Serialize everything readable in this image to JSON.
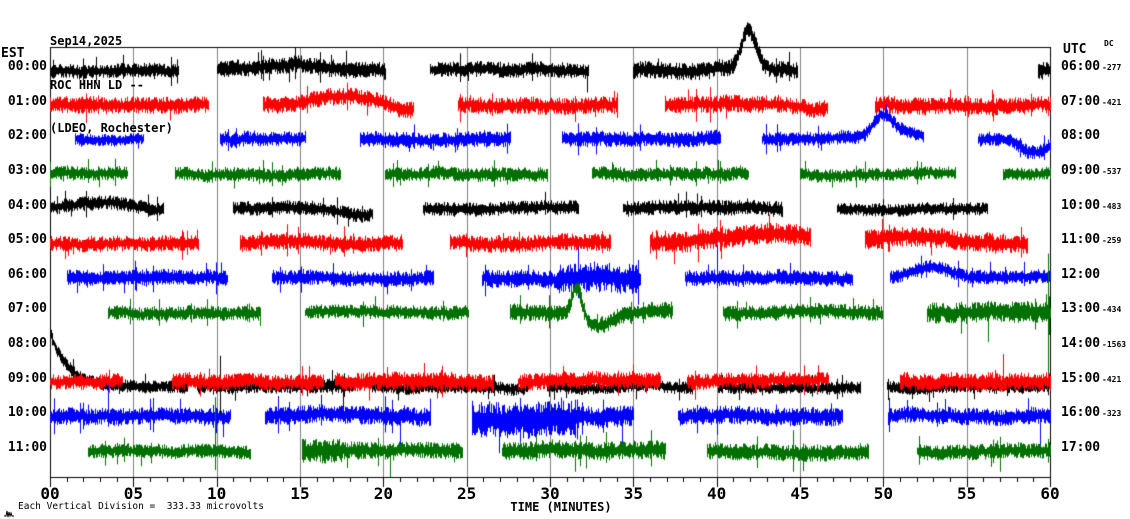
{
  "header": {
    "date": "Sep14,2025",
    "station": "ROC HHN LD --",
    "location": "(LDEO, Rochester)"
  },
  "footer": {
    "scale_text": "Each Vertical Division =  333.33 microvolts",
    "mark_icon": "waveform-mark"
  },
  "colors": {
    "trace_cycle": [
      "#000000",
      "#ff0000",
      "#0000ff",
      "#007000"
    ],
    "grid": "#808080",
    "frame": "#000000",
    "background": "#ffffff"
  },
  "chart_data": {
    "type": "line",
    "subtype": "seismogram-helicorder",
    "title": "ROC HHN LD -- (LDEO, Rochester) Sep14,2025",
    "x": {
      "label": "TIME (MINUTES)",
      "min": 0,
      "max": 60,
      "major": 5,
      "minor": 1,
      "tick_labels": [
        "00",
        "05",
        "10",
        "15",
        "20",
        "25",
        "30",
        "35",
        "40",
        "45",
        "50",
        "55",
        "60"
      ]
    },
    "left_axis_label": "EST",
    "right_axis_label": "UTC",
    "dc_column_label": "DC",
    "grid": true,
    "rows": [
      {
        "est": "00:00",
        "utc": "06:00",
        "dc": "-277",
        "color_index": 0,
        "offset": 0,
        "segments": [
          [
            0,
            7.7,
            0.2
          ],
          [
            10,
            20.1,
            0.24
          ],
          [
            22.8,
            32.3,
            0.22
          ],
          [
            35,
            44.8,
            0.24
          ],
          [
            59.3,
            60,
            0.25
          ]
        ],
        "events": [
          {
            "kind": "hump",
            "t": 14.5,
            "amp": 0.18,
            "w": 1.8
          },
          {
            "kind": "hump",
            "t": 41.9,
            "amp": 1.15,
            "w": 0.45
          },
          {
            "kind": "spike",
            "t": 32.2,
            "up": 0.1,
            "down": 0.65
          }
        ]
      },
      {
        "est": "01:00",
        "utc": "07:00",
        "dc": "-421",
        "color_index": 1,
        "offset": 0,
        "segments": [
          [
            0,
            9.5,
            0.24
          ],
          [
            12.8,
            21.8,
            0.24
          ],
          [
            24.5,
            34,
            0.24
          ],
          [
            36.9,
            46.6,
            0.24
          ],
          [
            49.5,
            60,
            0.24
          ]
        ],
        "events": [
          {
            "kind": "hump",
            "t": 17.8,
            "amp": 0.22,
            "w": 1.6
          },
          {
            "kind": "hump",
            "t": 21.2,
            "amp": -0.22,
            "w": 0.7
          },
          {
            "kind": "hump",
            "t": 46,
            "amp": -0.15,
            "w": 0.8
          }
        ]
      },
      {
        "est": "02:00",
        "utc": "08:00",
        "dc": "",
        "color_index": 2,
        "offset": 0,
        "segments": [
          [
            1.5,
            5.6,
            0.17
          ],
          [
            10.2,
            15.3,
            0.22
          ],
          [
            18.6,
            27.6,
            0.22
          ],
          [
            30.7,
            40.2,
            0.22
          ],
          [
            42.7,
            52.4,
            0.2
          ],
          [
            55.7,
            60,
            0.2
          ]
        ],
        "events": [
          {
            "kind": "hump",
            "t": 49.9,
            "amp": 0.55,
            "w": 0.55
          },
          {
            "kind": "hump",
            "t": 50.9,
            "amp": 0.2,
            "w": 1.2
          },
          {
            "kind": "hump",
            "t": 59,
            "amp": -0.4,
            "w": 0.8
          }
        ]
      },
      {
        "est": "03:00",
        "utc": "09:00",
        "dc": "-537",
        "color_index": 3,
        "offset": 0,
        "segments": [
          [
            0,
            4.6,
            0.2
          ],
          [
            7.5,
            17.4,
            0.2
          ],
          [
            20.1,
            29.8,
            0.2
          ],
          [
            32.5,
            41.9,
            0.2
          ],
          [
            45,
            54.3,
            0.18
          ],
          [
            57.2,
            60,
            0.18
          ]
        ],
        "events": []
      },
      {
        "est": "04:00",
        "utc": "10:00",
        "dc": "-483",
        "color_index": 0,
        "offset": 0,
        "segments": [
          [
            0,
            6.8,
            0.2
          ],
          [
            11,
            19.3,
            0.2
          ],
          [
            22.4,
            31.7,
            0.2
          ],
          [
            34.4,
            43.9,
            0.22
          ],
          [
            47.2,
            56.2,
            0.18
          ]
        ],
        "events": [
          {
            "kind": "hump",
            "t": 3.2,
            "amp": 0.25,
            "w": 1.5
          },
          {
            "kind": "hump",
            "t": 18.6,
            "amp": -0.2,
            "w": 1.0
          }
        ]
      },
      {
        "est": "05:00",
        "utc": "11:00",
        "dc": "-259",
        "color_index": 1,
        "offset": 0,
        "segments": [
          [
            0,
            8.9,
            0.22
          ],
          [
            11.4,
            21.1,
            0.24
          ],
          [
            24,
            33.6,
            0.24
          ],
          [
            36,
            45.6,
            0.3
          ],
          [
            48.9,
            58.6,
            0.28
          ]
        ],
        "events": [
          {
            "kind": "hump",
            "t": 43,
            "amp": 0.25,
            "w": 2.5
          },
          {
            "kind": "hump",
            "t": 51.5,
            "amp": 0.2,
            "w": 2.0
          }
        ]
      },
      {
        "est": "06:00",
        "utc": "12:00",
        "dc": "",
        "color_index": 2,
        "offset": 0,
        "segments": [
          [
            1,
            10.6,
            0.22
          ],
          [
            13.3,
            23,
            0.22
          ],
          [
            25.9,
            30.5,
            0.26
          ],
          [
            30.5,
            35.4,
            0.42
          ],
          [
            38.1,
            48.1,
            0.22
          ],
          [
            50.4,
            60,
            0.2
          ]
        ],
        "events": [
          {
            "kind": "spike",
            "t": 40,
            "up": 0.95,
            "down": 0.3
          },
          {
            "kind": "hump",
            "t": 53,
            "amp": 0.3,
            "w": 1.0
          }
        ]
      },
      {
        "est": "07:00",
        "utc": "13:00",
        "dc": "-434",
        "color_index": 3,
        "offset": 0,
        "segments": [
          [
            3.5,
            12.6,
            0.2
          ],
          [
            15.3,
            25.1,
            0.2
          ],
          [
            27.6,
            37.3,
            0.24
          ],
          [
            40.4,
            49.9,
            0.22
          ],
          [
            52.6,
            60,
            0.3
          ]
        ],
        "events": [
          {
            "kind": "hump",
            "t": 31.6,
            "amp": 0.95,
            "w": 0.3
          },
          {
            "kind": "hump",
            "t": 32.8,
            "amp": -0.4,
            "w": 1.1
          },
          {
            "kind": "spike",
            "t": 56.3,
            "up": 0.2,
            "down": 0.85
          },
          {
            "kind": "spike",
            "t": 59.85,
            "up": 1.7,
            "down": 2.3
          }
        ]
      },
      {
        "est": "08:00",
        "utc": "14:00",
        "dc": "-1563",
        "color_index": 0,
        "offset": 1.15,
        "segments": [
          [
            0,
            8.2,
            0.18
          ],
          [
            8.8,
            18.3,
            0.2
          ],
          [
            19.3,
            28.6,
            0.18
          ],
          [
            29.8,
            38.6,
            0.18
          ],
          [
            40.1,
            48.6,
            0.18
          ],
          [
            50.2,
            60,
            0.18
          ]
        ],
        "events": [
          {
            "kind": "decay",
            "t": 0,
            "amp": 1.55,
            "tau": 1.1
          },
          {
            "kind": "spike",
            "t": 10.2,
            "up": 0.9,
            "down": 0.9
          },
          {
            "kind": "spike",
            "t": 17.6,
            "up": 0.3,
            "down": 0.8
          }
        ]
      },
      {
        "est": "09:00",
        "utc": "15:00",
        "dc": "-421",
        "color_index": 1,
        "offset": 0,
        "segments": [
          [
            0,
            4.3,
            0.22
          ],
          [
            7.3,
            16.4,
            0.24
          ],
          [
            17.1,
            26.6,
            0.26
          ],
          [
            28.1,
            36.6,
            0.24
          ],
          [
            38.2,
            46.7,
            0.22
          ],
          [
            51,
            60,
            0.26
          ]
        ],
        "events": [
          {
            "kind": "spike",
            "t": 57.2,
            "up": 0.8,
            "down": 0.2
          }
        ]
      },
      {
        "est": "10:00",
        "utc": "16:00",
        "dc": "-323",
        "color_index": 2,
        "offset": 0,
        "segments": [
          [
            0,
            10.8,
            0.24
          ],
          [
            12.9,
            22.8,
            0.26
          ],
          [
            25.3,
            31.5,
            0.5
          ],
          [
            31.5,
            35,
            0.3
          ],
          [
            37.7,
            47.5,
            0.26
          ],
          [
            50.3,
            60,
            0.24
          ]
        ],
        "events": [
          {
            "kind": "spike",
            "t": 3.5,
            "up": 0.9,
            "down": 0.3
          },
          {
            "kind": "spike",
            "t": 10.4,
            "up": 0.2,
            "down": 0.6
          },
          {
            "kind": "spike",
            "t": 21,
            "up": 0.2,
            "down": 0.9
          },
          {
            "kind": "hump",
            "t": 28,
            "amp": -0.15,
            "w": 2.0
          },
          {
            "kind": "spike",
            "t": 34.3,
            "up": 0.2,
            "down": 1.0
          },
          {
            "kind": "spike",
            "t": 59.4,
            "up": 0.2,
            "down": 1.2
          }
        ]
      },
      {
        "est": "11:00",
        "utc": "17:00",
        "dc": "",
        "color_index": 3,
        "offset": 0,
        "segments": [
          [
            2.3,
            12,
            0.2
          ],
          [
            15.1,
            17.5,
            0.36
          ],
          [
            17.5,
            24.7,
            0.24
          ],
          [
            27.1,
            36.9,
            0.26
          ],
          [
            39.4,
            49.1,
            0.24
          ],
          [
            52,
            60,
            0.22
          ]
        ],
        "events": [
          {
            "kind": "spike",
            "t": 9.9,
            "up": 1.55,
            "down": 0.55
          },
          {
            "kind": "spike",
            "t": 20.4,
            "up": 0.2,
            "down": 0.85
          },
          {
            "kind": "spike",
            "t": 31.5,
            "up": 0.3,
            "down": 0.6
          },
          {
            "kind": "spike",
            "t": 44.6,
            "up": 0.6,
            "down": 0.6
          },
          {
            "kind": "spike",
            "t": 57,
            "up": 0.3,
            "down": 0.6
          }
        ]
      }
    ]
  }
}
